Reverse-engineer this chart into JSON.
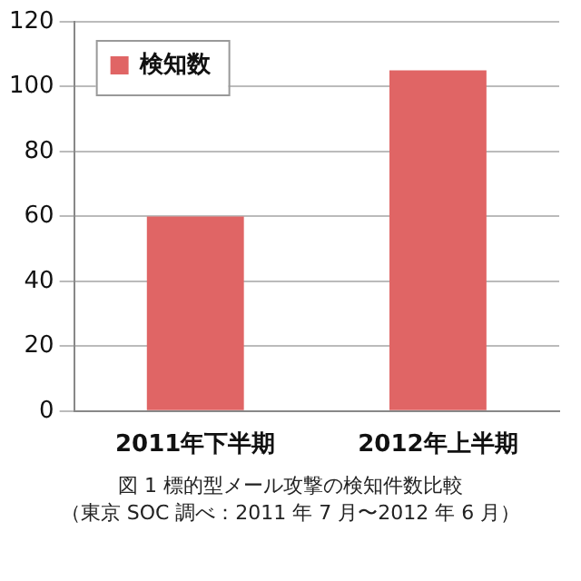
{
  "chart_data": {
    "type": "bar",
    "title": "図 1 標的型メール攻撃の検知件数比較",
    "subtitle": "（東京 SOC 調べ：2011 年 7 月〜2012 年 6 月）",
    "categories": [
      "2011年下半期",
      "2012年上半期"
    ],
    "series": [
      {
        "name": "検知数",
        "color": "#e06565",
        "values": [
          60,
          105
        ]
      }
    ],
    "ylim": [
      0,
      120
    ],
    "yticks": [
      0,
      20,
      40,
      60,
      80,
      100,
      120
    ],
    "grid": "y",
    "legend": "top left"
  }
}
